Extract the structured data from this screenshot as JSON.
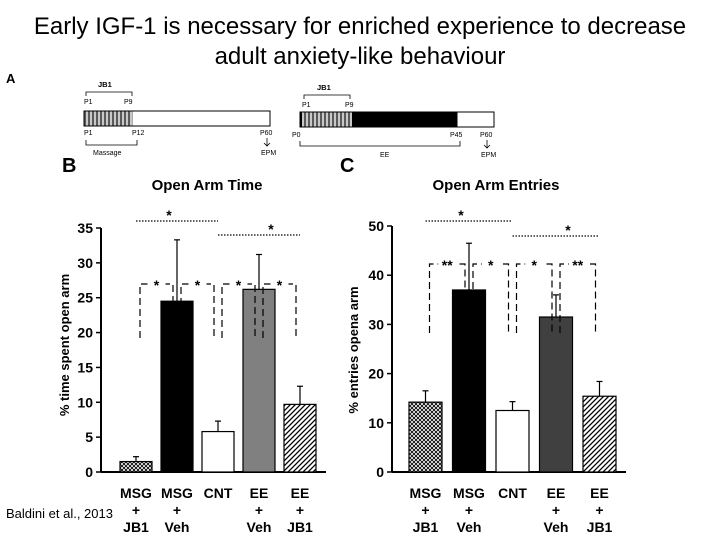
{
  "slide": {
    "title_line1": "Early IGF-1 is necessary for enriched experience to decrease",
    "title_line2": "adult anxiety-like behaviour",
    "citation": "Baldini et al., 2013"
  },
  "panel_labels": {
    "a": "A",
    "b": "B",
    "c": "C"
  },
  "timelines": [
    {
      "jb1_label": "JB1",
      "jb1_start": "P1",
      "jb1_end": "P9",
      "treat_start": "P1",
      "treat_end": "P12",
      "test_age": "P60",
      "test_label": "EPM",
      "treatment_label": "Massage"
    },
    {
      "jb1_label": "JB1",
      "jb1_start": "P1",
      "jb1_end": "P9",
      "treat_start": "P0",
      "treat_end": "P45",
      "test_age": "P60",
      "test_label": "EPM",
      "treatment_label": "EE"
    }
  ],
  "colors": {
    "bar_black": "#000000",
    "bar_grey": "#808080",
    "bar_dark_grey": "#404040",
    "bar_white": "#ffffff",
    "jb1_stripes": "#6e6e6e"
  },
  "chart_data": [
    {
      "type": "bar",
      "title": "Open Arm Time",
      "ylabel": "% time spent open arm",
      "ylim": [
        0,
        35
      ],
      "yticks": [
        0,
        5,
        10,
        15,
        20,
        25,
        30,
        35
      ],
      "categories": [
        {
          "line1": "MSG",
          "line2": "+",
          "line3": "JB1"
        },
        {
          "line1": "MSG",
          "line2": "+",
          "line3": "Veh"
        },
        {
          "line1": "CNT",
          "line2": "",
          "line3": ""
        },
        {
          "line1": "EE",
          "line2": "+",
          "line3": "Veh"
        },
        {
          "line1": "EE",
          "line2": "+",
          "line3": "JB1"
        }
      ],
      "values": [
        1.5,
        24.5,
        5.8,
        26.2,
        9.7
      ],
      "errors": [
        0.7,
        8.8,
        1.5,
        5.0,
        2.6
      ],
      "fills": [
        "crosshatch",
        "black",
        "white",
        "grey",
        "diagonal"
      ],
      "significance": [
        {
          "label": "*",
          "pair": [
            0,
            2
          ],
          "style": "dotted"
        },
        {
          "label": "*",
          "pair": [
            2,
            4
          ],
          "style": "dotted"
        },
        {
          "label": "*",
          "pair": [
            0,
            1
          ],
          "style": "dashed"
        },
        {
          "label": "*",
          "pair": [
            1,
            2
          ],
          "style": "dashed"
        },
        {
          "label": "*",
          "pair": [
            2,
            3
          ],
          "style": "dashed"
        },
        {
          "label": "*",
          "pair": [
            3,
            4
          ],
          "style": "dashed"
        }
      ]
    },
    {
      "type": "bar",
      "title": "Open Arm Entries",
      "ylabel": "% entries opena arm",
      "ylim": [
        0,
        50
      ],
      "yticks": [
        0,
        10,
        20,
        30,
        40,
        50
      ],
      "categories": [
        {
          "line1": "MSG",
          "line2": "+",
          "line3": "JB1"
        },
        {
          "line1": "MSG",
          "line2": "+",
          "line3": "Veh"
        },
        {
          "line1": "CNT",
          "line2": "",
          "line3": ""
        },
        {
          "line1": "EE",
          "line2": "+",
          "line3": "Veh"
        },
        {
          "line1": "EE",
          "line2": "+",
          "line3": "JB1"
        }
      ],
      "values": [
        14.2,
        37.0,
        12.5,
        31.5,
        15.4
      ],
      "errors": [
        2.3,
        9.5,
        1.8,
        4.5,
        3.0
      ],
      "fills": [
        "crosshatch",
        "black",
        "white",
        "dark-grey",
        "diagonal"
      ],
      "significance": [
        {
          "label": "*",
          "pair": [
            0,
            2
          ],
          "style": "dotted"
        },
        {
          "label": "*",
          "pair": [
            2,
            4
          ],
          "style": "dotted"
        },
        {
          "label": "**",
          "pair": [
            0,
            1
          ],
          "style": "dashed"
        },
        {
          "label": "*",
          "pair": [
            1,
            2
          ],
          "style": "dashed"
        },
        {
          "label": "*",
          "pair": [
            2,
            3
          ],
          "style": "dashed"
        },
        {
          "label": "**",
          "pair": [
            3,
            4
          ],
          "style": "dashed"
        }
      ]
    }
  ]
}
